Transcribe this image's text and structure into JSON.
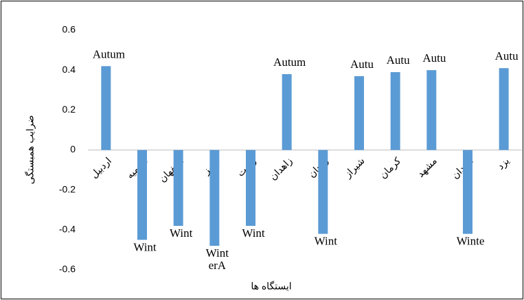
{
  "chart_data": {
    "type": "bar",
    "categories": [
      "اردبیل",
      "ارومیه",
      "اصفهان",
      "تبریز",
      "رشت",
      "زاهدان",
      "زنجان",
      "شیراز",
      "کرمان",
      "مشهد",
      "همدان",
      "یزد"
    ],
    "values": [
      0.42,
      -0.45,
      -0.38,
      -0.48,
      -0.38,
      0.38,
      -0.42,
      0.37,
      0.39,
      0.4,
      -0.42,
      0.41
    ],
    "annotations": [
      [
        "Autum"
      ],
      [
        "Wint"
      ],
      [
        "Wint"
      ],
      [
        "Wint",
        "erA"
      ],
      [
        "Wint"
      ],
      [
        "Autum"
      ],
      [
        "Wint"
      ],
      [
        "Autu"
      ],
      [
        "Autu"
      ],
      [
        "Autu"
      ],
      [
        "Winte"
      ],
      [
        "Autu"
      ]
    ],
    "color": "#5b9bd5",
    "x_label": "ایستگاه ها",
    "y_label": "ضرایب همبستگی",
    "ylim": [
      -0.6,
      0.6
    ],
    "yticks": [
      -0.6,
      -0.4,
      -0.2,
      0,
      0.2,
      0.4,
      0.6
    ],
    "grid": false
  }
}
